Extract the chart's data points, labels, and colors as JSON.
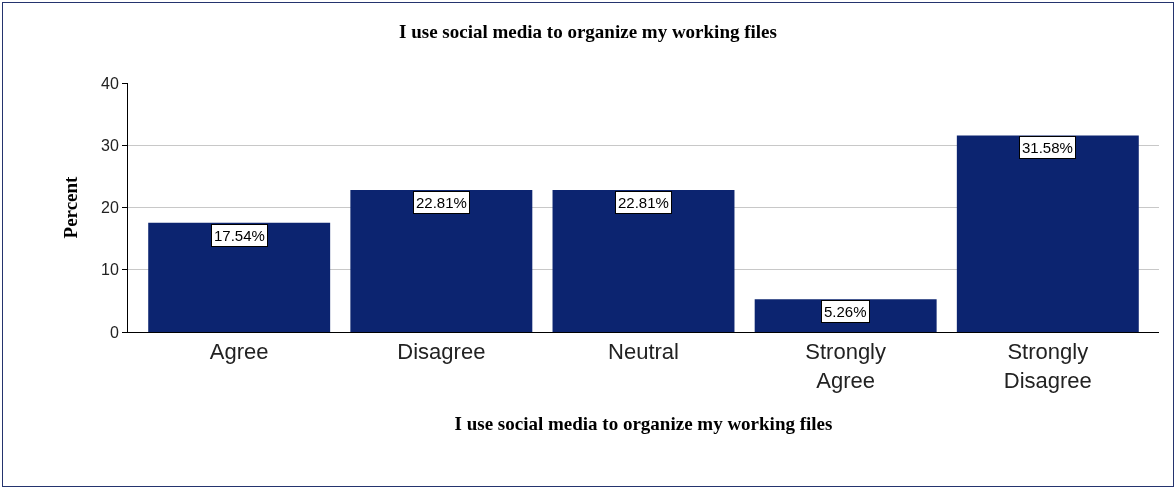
{
  "chart_data": {
    "type": "bar",
    "title": "I use social media to organize my working files",
    "xlabel": "I use social media to organize my working files",
    "ylabel": "Percent",
    "categories": [
      "Agree",
      "Disagree",
      "Neutral",
      "Strongly Agree",
      "Strongly Disagree"
    ],
    "values": [
      17.54,
      22.81,
      22.81,
      5.26,
      31.58
    ],
    "value_labels": [
      "17.54%",
      "22.81%",
      "22.81%",
      "5.26%",
      "31.58%"
    ],
    "color": "#0c2470",
    "ylim": [
      0,
      40
    ],
    "yticks": [
      0,
      10,
      20,
      30,
      40
    ],
    "grid": "y"
  }
}
